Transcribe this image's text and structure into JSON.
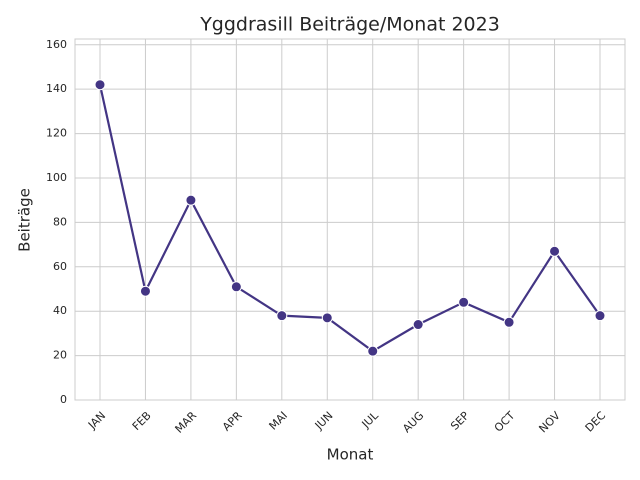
{
  "chart_data": {
    "type": "line",
    "title": "Yggdrasill Beiträge/Monat 2023",
    "x_label": "Monat",
    "y_label": "Beiträge",
    "categories": [
      "JAN",
      "FEB",
      "MAR",
      "APR",
      "MAI",
      "JUN",
      "JUL",
      "AUG",
      "SEP",
      "OCT",
      "NOV",
      "DEC"
    ],
    "values": [
      142,
      49,
      90,
      51,
      38,
      37,
      22,
      34,
      44,
      35,
      67,
      38
    ],
    "color": "#433584",
    "ylim": [
      0,
      162.6
    ],
    "yticks": [
      0,
      20,
      40,
      60,
      80,
      100,
      120,
      140,
      160
    ],
    "grid": true
  }
}
